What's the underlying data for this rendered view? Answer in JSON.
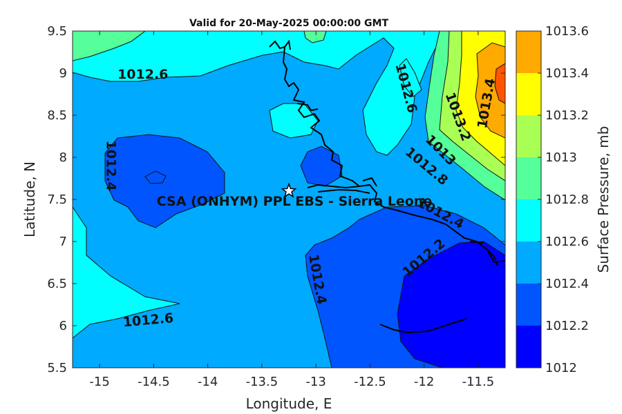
{
  "title": "Valid for 20-May-2025 00:00:00 GMT",
  "xlabel": "Longitude, E",
  "ylabel": "Latitude, N",
  "colorbar_label": "Surface Pressure, mb",
  "x_ticks": [
    "-15",
    "-14.5",
    "-14",
    "-13.5",
    "-13",
    "-12.5",
    "-12",
    "-11.5"
  ],
  "y_ticks": [
    "9.5",
    "9",
    "8.5",
    "8",
    "7.5",
    "7",
    "6.5",
    "6",
    "5.5"
  ],
  "site_label": "CSA (ONHYM) PPL EBS  - Sierra Leone",
  "chart_data": {
    "type": "contour-map",
    "xlim": [
      -15.25,
      -11.25
    ],
    "ylim": [
      5.5,
      9.5
    ],
    "levels": [
      1012,
      1012.2,
      1012.4,
      1012.6,
      1012.8,
      1013,
      1013.2,
      1013.4,
      1013.6
    ],
    "level_labels": [
      "1012",
      "1012.2",
      "1012.4",
      "1012.6",
      "1012.8",
      "1013",
      "1013.2",
      "1013.4",
      "1013.6"
    ],
    "level_colors": [
      "#0000ff",
      "#0055ff",
      "#00aaff",
      "#00ffff",
      "#55ff99",
      "#aaff55",
      "#ffff00",
      "#ffaa00",
      "#ff5500"
    ],
    "contour_labels": [
      {
        "text": "1012.6",
        "lon": -14.6,
        "lat": 8.98,
        "angle": 0
      },
      {
        "text": "1012.4",
        "lon": -14.9,
        "lat": 7.9,
        "angle": 90
      },
      {
        "text": "1012.6",
        "lon": -14.55,
        "lat": 6.06,
        "angle": -5
      },
      {
        "text": "1012.4",
        "lon": -12.99,
        "lat": 6.55,
        "angle": 80
      },
      {
        "text": "1012.2",
        "lon": -12.0,
        "lat": 6.8,
        "angle": -40
      },
      {
        "text": "1012.4",
        "lon": -11.85,
        "lat": 7.33,
        "angle": 28
      },
      {
        "text": "1012.8",
        "lon": -11.98,
        "lat": 7.89,
        "angle": 40
      },
      {
        "text": "1013",
        "lon": -11.85,
        "lat": 8.08,
        "angle": 45
      },
      {
        "text": "1013.2",
        "lon": -11.69,
        "lat": 8.48,
        "angle": 70
      },
      {
        "text": "1013.4",
        "lon": -11.42,
        "lat": 8.64,
        "angle": -80
      },
      {
        "text": "1012.6",
        "lon": -12.17,
        "lat": 8.82,
        "angle": 75
      }
    ],
    "site": {
      "lon": -13.25,
      "lat": 7.6
    }
  }
}
